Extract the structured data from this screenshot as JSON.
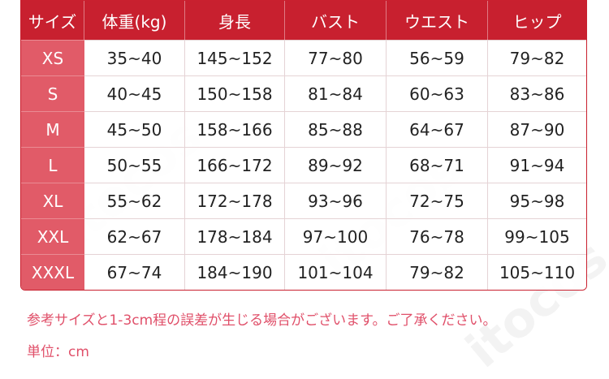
{
  "table": {
    "headers": [
      "サイズ",
      "体重(kg)",
      "身長",
      "バスト",
      "ウエスト",
      "ヒップ"
    ],
    "rows": [
      [
        "XS",
        "35~40",
        "145~152",
        "77~80",
        "56~59",
        "79~82"
      ],
      [
        "S",
        "40~45",
        "150~158",
        "81~84",
        "60~63",
        "83~86"
      ],
      [
        "M",
        "45~50",
        "158~166",
        "85~88",
        "64~67",
        "87~90"
      ],
      [
        "L",
        "50~55",
        "166~172",
        "89~92",
        "68~71",
        "91~94"
      ],
      [
        "XL",
        "55~62",
        "172~178",
        "93~96",
        "72~75",
        "95~98"
      ],
      [
        "XXL",
        "62~67",
        "178~184",
        "97~100",
        "76~78",
        "99~105"
      ],
      [
        "XXXL",
        "67~74",
        "184~190",
        "101~104",
        "79~82",
        "105~110"
      ]
    ]
  },
  "notes": {
    "disclaimer": "参考サイズと1-3cm程の誤差が生じる場合がございます。ご了承ください。",
    "unit": "単位：cm"
  },
  "watermark": "itocos",
  "colors": {
    "header": "#c8202f",
    "size_column": "#e15b68",
    "note_text": "#e0506a"
  }
}
